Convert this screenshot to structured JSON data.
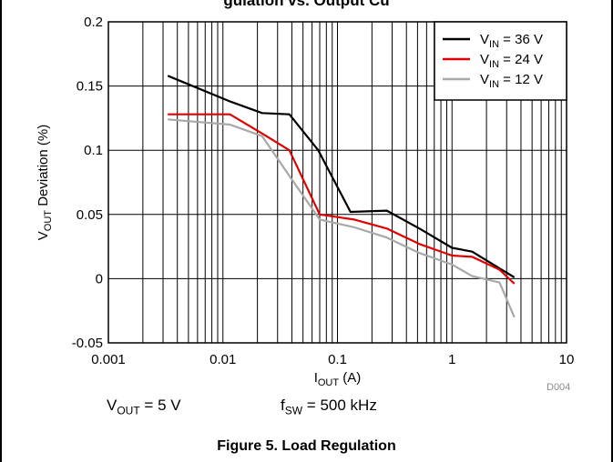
{
  "page": {
    "title_partial": "gulation vs. Output Cu",
    "footer_tag": "D004",
    "conditions": [
      "5 V",
      "500 kHz"
    ],
    "caption": "Figure 5. Load Regulation"
  },
  "chart_data": {
    "type": "line",
    "title": "",
    "xlabel": "I_OUT (A)",
    "ylabel": "V_OUT Deviation (%)",
    "xscale": "log",
    "xlim": [
      0.001,
      10
    ],
    "ylim": [
      -0.05,
      0.2
    ],
    "x_ticks": [
      "0.001",
      "0.01",
      "0.1",
      "1",
      "10"
    ],
    "y_ticks": [
      "-0.05",
      "0",
      "0.05",
      "0.1",
      "0.15",
      "0.2"
    ],
    "grid": true,
    "legend_position": "top-right",
    "series": [
      {
        "name": "V_IN = 36 V",
        "color": "#000000",
        "x": [
          0.0033,
          0.0115,
          0.022,
          0.038,
          0.068,
          0.13,
          0.27,
          0.52,
          1.0,
          1.5,
          2.6,
          3.5
        ],
        "y": [
          0.158,
          0.138,
          0.129,
          0.128,
          0.1,
          0.052,
          0.053,
          0.039,
          0.024,
          0.021,
          0.008,
          0.001
        ]
      },
      {
        "name": "V_IN = 24 V",
        "color": "#e00000",
        "x": [
          0.0033,
          0.0115,
          0.022,
          0.038,
          0.07,
          0.14,
          0.27,
          0.52,
          1.0,
          1.5,
          2.6,
          3.5
        ],
        "y": [
          0.128,
          0.128,
          0.113,
          0.1,
          0.05,
          0.046,
          0.039,
          0.027,
          0.018,
          0.017,
          0.007,
          -0.004
        ]
      },
      {
        "name": "V_IN = 12 V",
        "color": "#a8a8a8",
        "x": [
          0.0033,
          0.0115,
          0.022,
          0.038,
          0.07,
          0.14,
          0.27,
          0.52,
          1.0,
          1.5,
          2.6,
          3.5
        ],
        "y": [
          0.124,
          0.12,
          0.111,
          0.08,
          0.046,
          0.04,
          0.032,
          0.02,
          0.011,
          0.002,
          -0.003,
          -0.03
        ]
      }
    ]
  }
}
